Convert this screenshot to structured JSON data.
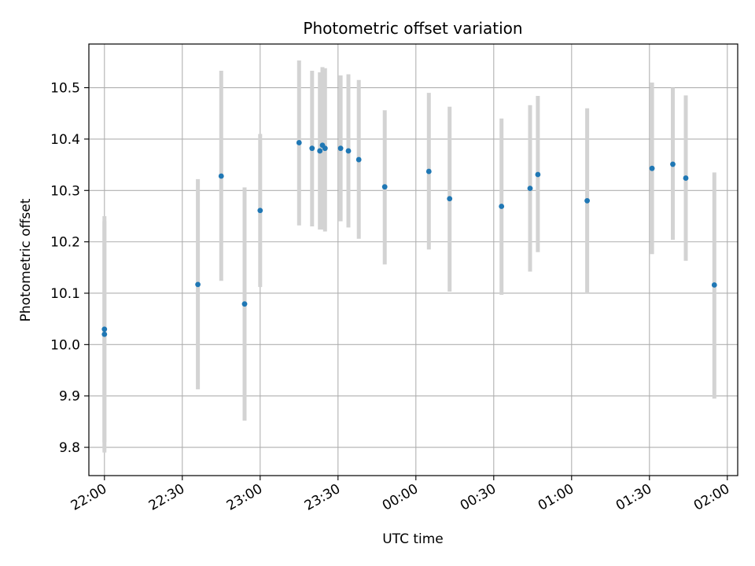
{
  "chart_data": {
    "type": "scatter",
    "title": "Photometric offset variation",
    "xlabel": "UTC time",
    "ylabel": "Photometric offset",
    "x_axis_kind": "time",
    "xlim": [
      "21:54",
      "02:04"
    ],
    "ylim": [
      9.745,
      10.585
    ],
    "x_ticks": [
      "22:00",
      "22:30",
      "23:00",
      "23:30",
      "00:00",
      "00:30",
      "01:00",
      "01:30",
      "02:00"
    ],
    "y_ticks": [
      "9.8",
      "9.9",
      "10.0",
      "10.1",
      "10.2",
      "10.3",
      "10.4",
      "10.5"
    ],
    "grid": true,
    "colors": {
      "points": "#1f77b4",
      "error_bars": "#d3d3d3",
      "grid": "#b0b0b0"
    },
    "series": [
      {
        "points": [
          {
            "x": "22:00",
            "y": 10.02,
            "err_low": 9.79,
            "err_high": 10.25
          },
          {
            "x": "22:00",
            "y": 10.03,
            "err_low": 9.81,
            "err_high": 10.24
          },
          {
            "x": "22:36",
            "y": 10.117,
            "err_low": 9.913,
            "err_high": 10.322
          },
          {
            "x": "22:45",
            "y": 10.328,
            "err_low": 10.124,
            "err_high": 10.533
          },
          {
            "x": "22:54",
            "y": 10.079,
            "err_low": 9.852,
            "err_high": 10.306
          },
          {
            "x": "23:00",
            "y": 10.261,
            "err_low": 10.112,
            "err_high": 10.41
          },
          {
            "x": "23:15",
            "y": 10.393,
            "err_low": 10.232,
            "err_high": 10.553
          },
          {
            "x": "23:20",
            "y": 10.382,
            "err_low": 10.23,
            "err_high": 10.533
          },
          {
            "x": "23:23",
            "y": 10.377,
            "err_low": 10.224,
            "err_high": 10.53
          },
          {
            "x": "23:24",
            "y": 10.388,
            "err_low": 10.224,
            "err_high": 10.54
          },
          {
            "x": "23:25",
            "y": 10.382,
            "err_low": 10.22,
            "err_high": 10.538
          },
          {
            "x": "23:31",
            "y": 10.382,
            "err_low": 10.24,
            "err_high": 10.524
          },
          {
            "x": "23:34",
            "y": 10.377,
            "err_low": 10.228,
            "err_high": 10.526
          },
          {
            "x": "23:38",
            "y": 10.36,
            "err_low": 10.206,
            "err_high": 10.515
          },
          {
            "x": "23:48",
            "y": 10.307,
            "err_low": 10.156,
            "err_high": 10.456
          },
          {
            "x": "00:05",
            "y": 10.337,
            "err_low": 10.185,
            "err_high": 10.49
          },
          {
            "x": "00:13",
            "y": 10.284,
            "err_low": 10.103,
            "err_high": 10.463
          },
          {
            "x": "00:33",
            "y": 10.269,
            "err_low": 10.097,
            "err_high": 10.44
          },
          {
            "x": "00:44",
            "y": 10.304,
            "err_low": 10.142,
            "err_high": 10.466
          },
          {
            "x": "00:47",
            "y": 10.331,
            "err_low": 10.18,
            "err_high": 10.484
          },
          {
            "x": "01:06",
            "y": 10.28,
            "err_low": 10.1,
            "err_high": 10.46
          },
          {
            "x": "01:31",
            "y": 10.343,
            "err_low": 10.176,
            "err_high": 10.51
          },
          {
            "x": "01:39",
            "y": 10.351,
            "err_low": 10.204,
            "err_high": 10.5
          },
          {
            "x": "01:44",
            "y": 10.324,
            "err_low": 10.163,
            "err_high": 10.485
          },
          {
            "x": "01:55",
            "y": 10.116,
            "err_low": 9.895,
            "err_high": 10.335
          }
        ]
      }
    ]
  }
}
